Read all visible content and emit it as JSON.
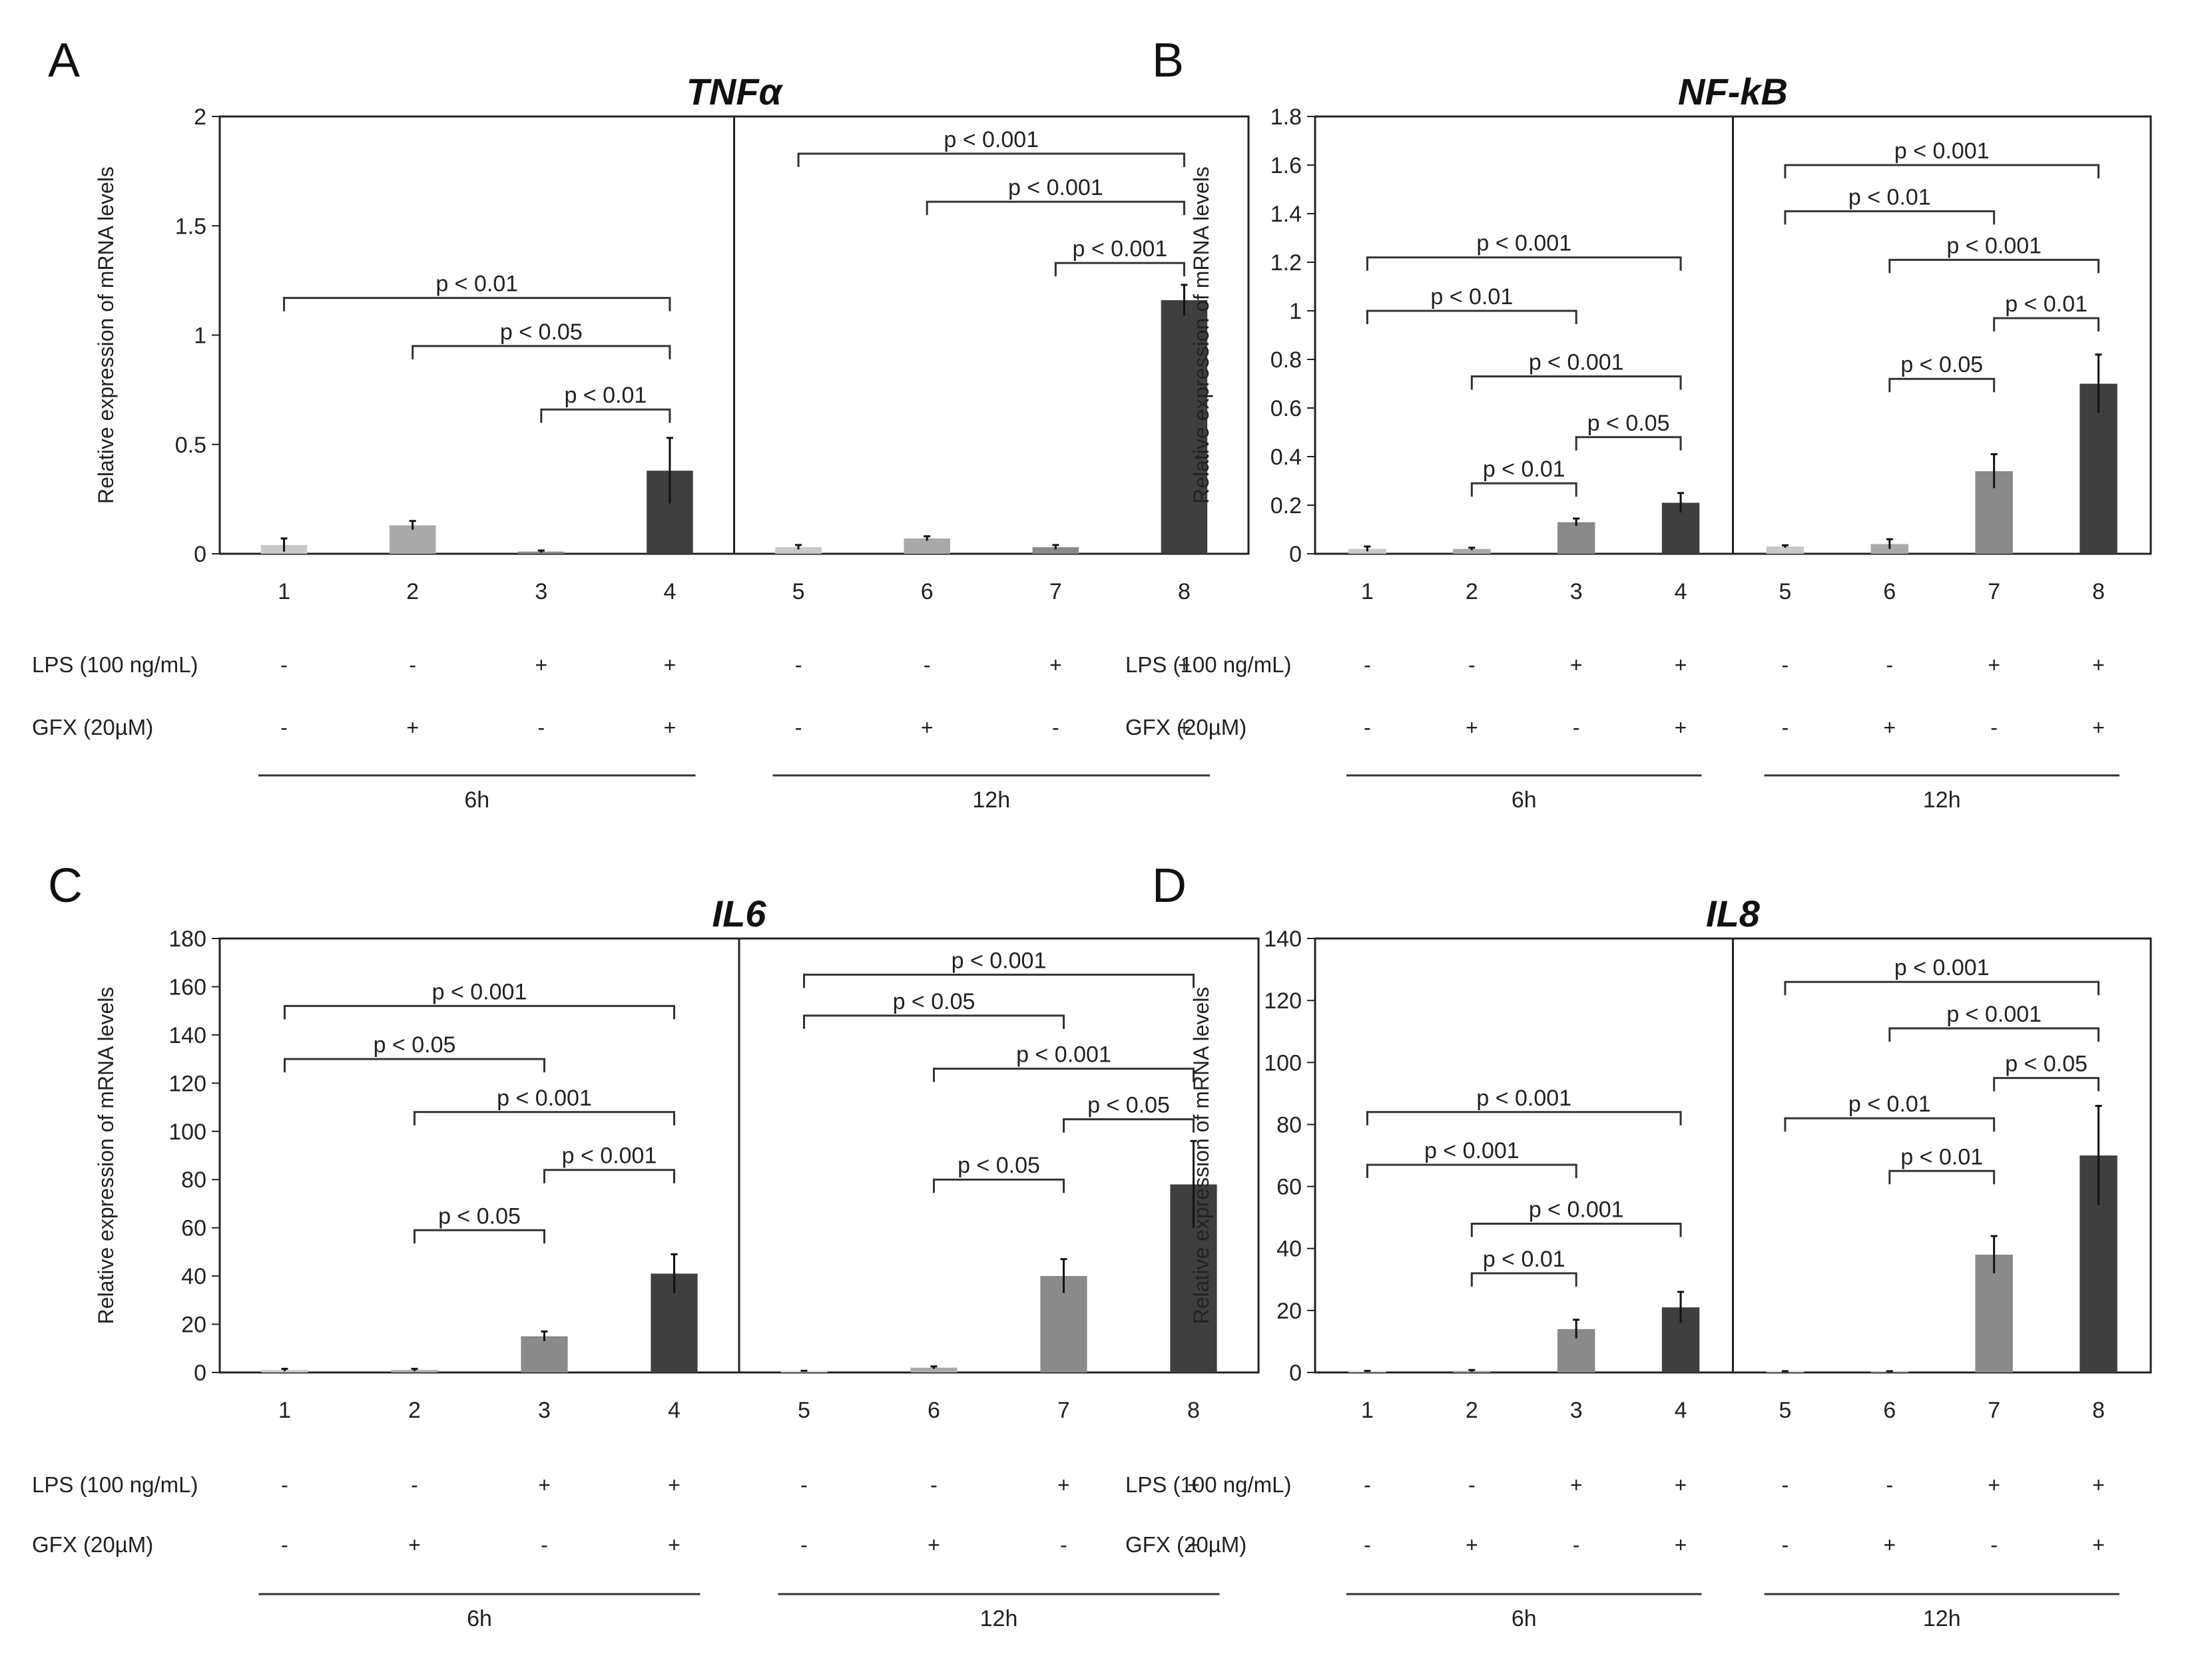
{
  "chart_data": [
    {
      "type": "bar",
      "panel_label": "A",
      "title": "TNFα",
      "ylabel": "Relative expression of mRNA levels",
      "ylim": [
        0,
        2
      ],
      "yticks": [
        "0",
        "0.5",
        "1",
        "1.5",
        "2"
      ],
      "categories": [
        "1",
        "2",
        "3",
        "4",
        "5",
        "6",
        "7",
        "8"
      ],
      "values": [
        0.04,
        0.13,
        0.01,
        0.38,
        0.03,
        0.07,
        0.03,
        1.16
      ],
      "errors": [
        0.03,
        0.02,
        0.005,
        0.15,
        0.01,
        0.01,
        0.01,
        0.07
      ],
      "bar_colors": [
        "#c8c8c8",
        "#a9a9a9",
        "#8a8a8a",
        "#3f3f3f",
        "#c8c8c8",
        "#a9a9a9",
        "#8a8a8a",
        "#3f3f3f"
      ],
      "comparisons": [
        {
          "from": 1,
          "to": 4,
          "y": 1.17,
          "label": "p < 0.01"
        },
        {
          "from": 2,
          "to": 4,
          "y": 0.95,
          "label": "p < 0.05"
        },
        {
          "from": 3,
          "to": 4,
          "y": 0.66,
          "label": "p < 0.01"
        },
        {
          "from": 5,
          "to": 8,
          "y": 1.83,
          "label": "p < 0.001"
        },
        {
          "from": 6,
          "to": 8,
          "y": 1.61,
          "label": "p < 0.001"
        },
        {
          "from": 7,
          "to": 8,
          "y": 1.33,
          "label": "p < 0.001"
        }
      ],
      "rows": [
        {
          "label": "LPS (100 ng/mL)",
          "signs": [
            "-",
            "-",
            "+",
            "+",
            "-",
            "-",
            "+",
            "+"
          ]
        },
        {
          "label": "GFX (20µM)",
          "signs": [
            "-",
            "+",
            "-",
            "+",
            "-",
            "+",
            "-",
            "+"
          ]
        }
      ],
      "groups": [
        "6h",
        "12h"
      ]
    },
    {
      "type": "bar",
      "panel_label": "B",
      "title": "NF-kB",
      "ylabel": "Relative expression of mRNA levels",
      "ylim": [
        0,
        1.8
      ],
      "yticks": [
        "0",
        "0.2",
        "0.4",
        "0.6",
        "0.8",
        "1",
        "1.2",
        "1.4",
        "1.6",
        "1.8"
      ],
      "categories": [
        "1",
        "2",
        "3",
        "4",
        "5",
        "6",
        "7",
        "8"
      ],
      "values": [
        0.02,
        0.02,
        0.13,
        0.21,
        0.03,
        0.04,
        0.34,
        0.7
      ],
      "errors": [
        0.01,
        0.005,
        0.015,
        0.04,
        0.005,
        0.02,
        0.07,
        0.12
      ],
      "bar_colors": [
        "#c8c8c8",
        "#a9a9a9",
        "#8a8a8a",
        "#3f3f3f",
        "#c8c8c8",
        "#a9a9a9",
        "#8a8a8a",
        "#3f3f3f"
      ],
      "comparisons": [
        {
          "from": 1,
          "to": 4,
          "y": 1.22,
          "label": "p < 0.001"
        },
        {
          "from": 1,
          "to": 3,
          "y": 1.0,
          "label": "p < 0.01"
        },
        {
          "from": 2,
          "to": 4,
          "y": 0.73,
          "label": "p < 0.001"
        },
        {
          "from": 3,
          "to": 4,
          "y": 0.48,
          "label": "p < 0.05"
        },
        {
          "from": 2,
          "to": 3,
          "y": 0.29,
          "label": "p < 0.01"
        },
        {
          "from": 5,
          "to": 8,
          "y": 1.6,
          "label": "p < 0.001"
        },
        {
          "from": 5,
          "to": 7,
          "y": 1.41,
          "label": "p < 0.01"
        },
        {
          "from": 6,
          "to": 8,
          "y": 1.21,
          "label": "p < 0.001"
        },
        {
          "from": 7,
          "to": 8,
          "y": 0.97,
          "label": "p < 0.01"
        },
        {
          "from": 6,
          "to": 7,
          "y": 0.72,
          "label": "p < 0.05"
        }
      ],
      "rows": [
        {
          "label": "LPS (100 ng/mL)",
          "signs": [
            "-",
            "-",
            "+",
            "+",
            "-",
            "-",
            "+",
            "+"
          ]
        },
        {
          "label": "GFX (20µM)",
          "signs": [
            "-",
            "+",
            "-",
            "+",
            "-",
            "+",
            "-",
            "+"
          ]
        }
      ],
      "groups": [
        "6h",
        "12h"
      ]
    },
    {
      "type": "bar",
      "panel_label": "C",
      "title": "IL6",
      "ylabel": "Relative expression of mRNA levels",
      "ylim": [
        0,
        180
      ],
      "yticks": [
        "0",
        "20",
        "40",
        "60",
        "80",
        "100",
        "120",
        "140",
        "160",
        "180"
      ],
      "categories": [
        "1",
        "2",
        "3",
        "4",
        "5",
        "6",
        "7",
        "8"
      ],
      "values": [
        1,
        1,
        15,
        41,
        0.5,
        2,
        40,
        78
      ],
      "errors": [
        0.5,
        0.5,
        2,
        8,
        0.2,
        0.5,
        7,
        18
      ],
      "bar_colors": [
        "#c8c8c8",
        "#a9a9a9",
        "#8a8a8a",
        "#3f3f3f",
        "#c8c8c8",
        "#a9a9a9",
        "#8a8a8a",
        "#3f3f3f"
      ],
      "comparisons": [
        {
          "from": 1,
          "to": 4,
          "y": 152,
          "label": "p < 0.001"
        },
        {
          "from": 1,
          "to": 3,
          "y": 130,
          "label": "p < 0.05"
        },
        {
          "from": 2,
          "to": 4,
          "y": 108,
          "label": "p < 0.001"
        },
        {
          "from": 3,
          "to": 4,
          "y": 84,
          "label": "p < 0.001"
        },
        {
          "from": 2,
          "to": 3,
          "y": 59,
          "label": "p < 0.05"
        },
        {
          "from": 5,
          "to": 8,
          "y": 165,
          "label": "p < 0.001"
        },
        {
          "from": 5,
          "to": 7,
          "y": 148,
          "label": "p < 0.05"
        },
        {
          "from": 6,
          "to": 8,
          "y": 126,
          "label": "p < 0.001"
        },
        {
          "from": 7,
          "to": 8,
          "y": 105,
          "label": "p < 0.05"
        },
        {
          "from": 6,
          "to": 7,
          "y": 80,
          "label": "p < 0.05"
        }
      ],
      "rows": [
        {
          "label": "LPS (100 ng/mL)",
          "signs": [
            "-",
            "-",
            "+",
            "+",
            "-",
            "-",
            "+",
            "+"
          ]
        },
        {
          "label": "GFX (20µM)",
          "signs": [
            "-",
            "+",
            "-",
            "+",
            "-",
            "+",
            "-",
            "+"
          ]
        }
      ],
      "groups": [
        "6h",
        "12h"
      ]
    },
    {
      "type": "bar",
      "panel_label": "D",
      "title": "IL8",
      "ylabel": "Relative expression of mRNA levels",
      "ylim": [
        0,
        140
      ],
      "yticks": [
        "0",
        "20",
        "40",
        "60",
        "80",
        "100",
        "120",
        "140"
      ],
      "categories": [
        "1",
        "2",
        "3",
        "4",
        "5",
        "6",
        "7",
        "8"
      ],
      "values": [
        0.3,
        0.5,
        14,
        21,
        0.3,
        0.3,
        38,
        70
      ],
      "errors": [
        0.2,
        0.3,
        3,
        5,
        0.1,
        0.1,
        6,
        16
      ],
      "bar_colors": [
        "#c8c8c8",
        "#a9a9a9",
        "#8a8a8a",
        "#3f3f3f",
        "#c8c8c8",
        "#a9a9a9",
        "#8a8a8a",
        "#3f3f3f"
      ],
      "comparisons": [
        {
          "from": 1,
          "to": 4,
          "y": 84,
          "label": "p < 0.001"
        },
        {
          "from": 1,
          "to": 3,
          "y": 67,
          "label": "p < 0.001"
        },
        {
          "from": 2,
          "to": 4,
          "y": 48,
          "label": "p < 0.001"
        },
        {
          "from": 2,
          "to": 3,
          "y": 32,
          "label": "p < 0.01"
        },
        {
          "from": 5,
          "to": 8,
          "y": 126,
          "label": "p < 0.001"
        },
        {
          "from": 6,
          "to": 8,
          "y": 111,
          "label": "p < 0.001"
        },
        {
          "from": 7,
          "to": 8,
          "y": 95,
          "label": "p < 0.05"
        },
        {
          "from": 5,
          "to": 7,
          "y": 82,
          "label": "p < 0.01"
        },
        {
          "from": 6,
          "to": 7,
          "y": 65,
          "label": "p < 0.01"
        }
      ],
      "rows": [
        {
          "label": "LPS (100 ng/mL)",
          "signs": [
            "-",
            "-",
            "+",
            "+",
            "-",
            "-",
            "+",
            "+"
          ]
        },
        {
          "label": "GFX (20µM)",
          "signs": [
            "-",
            "+",
            "-",
            "+",
            "-",
            "+",
            "-",
            "+"
          ]
        }
      ],
      "groups": [
        "6h",
        "12h"
      ]
    }
  ]
}
